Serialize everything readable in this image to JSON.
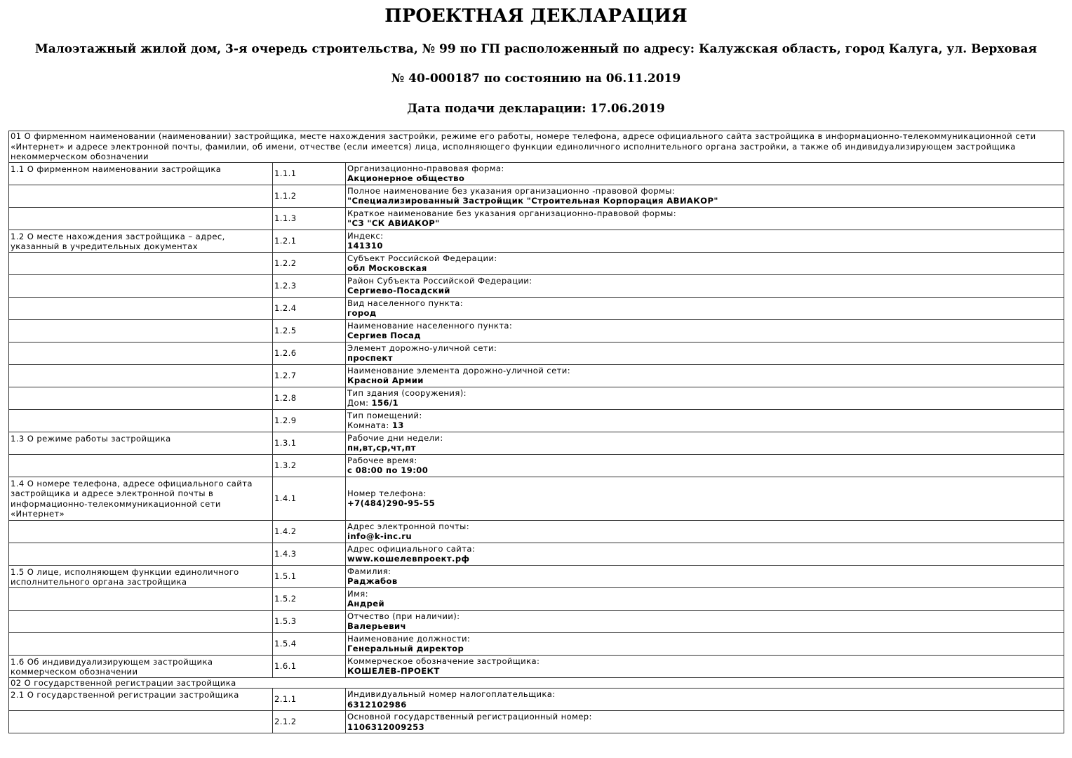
{
  "title": "ПРОЕКТНАЯ ДЕКЛАРАЦИЯ",
  "subtitle1": "Малоэтажный жилой дом, 3-я очередь строительства, № 99 по ГП расположенный по адресу: Калужская область, город Калуга, ул. Верховая",
  "subtitle2": "№ 40-000187 по состоянию на 06.11.2019",
  "subtitle3": "Дата подачи декларации: 17.06.2019",
  "sections": [
    {
      "header": "01 О фирменном наименовании (наименовании) застройщика, месте нахождения застройки, режиме его работы, номере телефона, адресе официального сайта застройщика в информационно-телекоммуникационной сети «Интернет» и адресе электронной почты, фамилии, об имени, отчестве (если имеется) лица, исполняющего функции единоличного исполнительного органа застройки, а также об индивидуализирующем застройщика некоммерческом обозначении",
      "rows": [
        {
          "group": "1.1 О фирменном наименовании застройщика",
          "code": "1.1.1",
          "label": "Организационно-правовая форма:",
          "prefix": "",
          "value": "Акционерное общество"
        },
        {
          "group": "",
          "code": "1.1.2",
          "label": "Полное наименование без указания организационно -правовой формы:",
          "prefix": "",
          "value": "\"Специализированный Застройщик \"Строительная Корпорация АВИАКОР\""
        },
        {
          "group": "",
          "code": "1.1.3",
          "label": "Краткое наименование без указания организационно-правовой формы:",
          "prefix": "",
          "value": "\"СЗ \"СК АВИАКОР\""
        },
        {
          "group": "1.2 О месте нахождения застройщика – адрес, указанный в учредительных документах",
          "code": "1.2.1",
          "label": "Индекс:",
          "prefix": "",
          "value": "141310"
        },
        {
          "group": "",
          "code": "1.2.2",
          "label": "Субъект Российской Федерации:",
          "prefix": "",
          "value": "обл Московская"
        },
        {
          "group": "",
          "code": "1.2.3",
          "label": "Район Субъекта Российской Федерации:",
          "prefix": "",
          "value": "Сергиево-Посадский"
        },
        {
          "group": "",
          "code": "1.2.4",
          "label": "Вид населенного пункта:",
          "prefix": "",
          "value": "город"
        },
        {
          "group": "",
          "code": "1.2.5",
          "label": "Наименование населенного пункта:",
          "prefix": "",
          "value": "Сергиев Посад"
        },
        {
          "group": "",
          "code": "1.2.6",
          "label": "Элемент дорожно-уличной сети:",
          "prefix": "",
          "value": "проспект"
        },
        {
          "group": "",
          "code": "1.2.7",
          "label": "Наименование элемента дорожно-уличной сети:",
          "prefix": "",
          "value": "Красной Армии"
        },
        {
          "group": "",
          "code": "1.2.8",
          "label": "Тип здания (сооружения):",
          "prefix": "Дом: ",
          "value": "156/1"
        },
        {
          "group": "",
          "code": "1.2.9",
          "label": "Тип помещений:",
          "prefix": "Комната: ",
          "value": "13"
        },
        {
          "group": "1.3 О режиме работы застройщика",
          "code": "1.3.1",
          "label": "Рабочие дни недели:",
          "prefix": "",
          "value": "пн,вт,ср,чт,пт"
        },
        {
          "group": "",
          "code": "1.3.2",
          "label": "Рабочее время:",
          "prefix": "",
          "value": "с 08:00 по 19:00"
        },
        {
          "group": "1.4 О номере телефона, адресе официального сайта застройщика и адресе электронной почты в информационно-телекоммуникационной сети «Интернет»",
          "code": "1.4.1",
          "label": "Номер телефона:",
          "prefix": "",
          "value": "+7(484)290-95-55"
        },
        {
          "group": "",
          "code": "1.4.2",
          "label": "Адрес электронной почты:",
          "prefix": "",
          "value": "info@k-inc.ru"
        },
        {
          "group": "",
          "code": "1.4.3",
          "label": "Адрес официального сайта:",
          "prefix": "",
          "value": "www.кошелевпроект.рф"
        },
        {
          "group": "1.5 О лице, исполняющем функции единоличного исполнительного органа застройщика",
          "code": "1.5.1",
          "label": "Фамилия:",
          "prefix": "",
          "value": "Раджабов"
        },
        {
          "group": "",
          "code": "1.5.2",
          "label": "Имя:",
          "prefix": "",
          "value": "Андрей"
        },
        {
          "group": "",
          "code": "1.5.3",
          "label": "Отчество (при наличии):",
          "prefix": "",
          "value": "Валерьевич"
        },
        {
          "group": "",
          "code": "1.5.4",
          "label": "Наименование должности:",
          "prefix": "",
          "value": "Генеральный директор"
        },
        {
          "group": "1.6 Об индивидуализирующем застройщика коммерческом обозначении",
          "code": "1.6.1",
          "label": "Коммерческое обозначение застройщика:",
          "prefix": "",
          "value": "КОШЕЛЕВ-ПРОЕКТ"
        }
      ]
    },
    {
      "header": "02 О государственной регистрации застройщика",
      "rows": [
        {
          "group": "2.1 О государственной регистрации застройщика",
          "code": "2.1.1",
          "label": "Индивидуальный номер налогоплательщика:",
          "prefix": "",
          "value": "6312102986"
        },
        {
          "group": "",
          "code": "2.1.2",
          "label": "Основной государственный регистрационный номер:",
          "prefix": "",
          "value": "1106312009253"
        }
      ]
    }
  ]
}
